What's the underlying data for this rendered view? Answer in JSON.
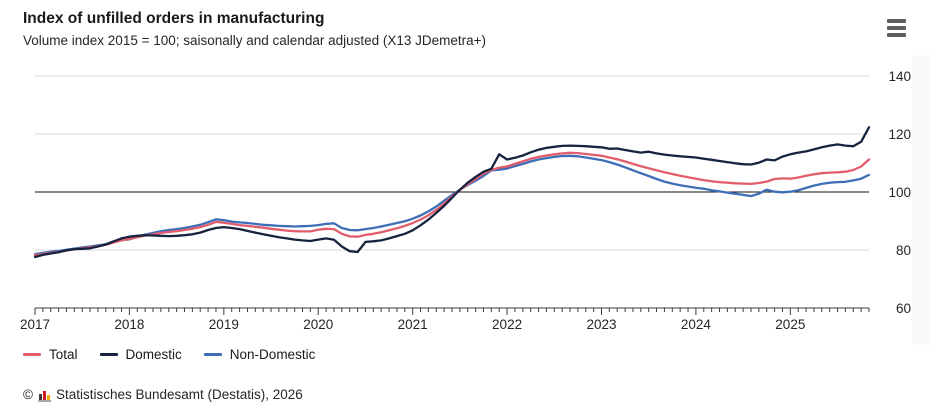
{
  "header": {
    "menu_tooltip": "Chart menu"
  },
  "chart_data": {
    "type": "line",
    "title": "Index of unfilled orders in manufacturing",
    "subtitle": "Volume index 2015 = 100; saisonally and calendar adjusted (X13 JDemetra+)",
    "x_start": "2017-01",
    "x_end": "2025-11",
    "x_frequency": "monthly",
    "x_year_labels": [
      "2017",
      "2018",
      "2019",
      "2020",
      "2021",
      "2022",
      "2023",
      "2024",
      "2025"
    ],
    "yticks": [
      140,
      120,
      100,
      80,
      60
    ],
    "ylim": [
      60,
      140
    ],
    "baseline_value": 100,
    "grid": "horizontal",
    "legend_position": "bottom-left",
    "draw_order": [
      2,
      0,
      1
    ],
    "series": [
      {
        "name": "Total",
        "color": "#e15d6c",
        "values": [
          78.2,
          78.6,
          79.0,
          79.3,
          79.8,
          80.2,
          80.6,
          80.9,
          81.3,
          81.8,
          82.6,
          83.3,
          83.8,
          84.4,
          85.0,
          85.4,
          85.9,
          86.2,
          86.5,
          86.9,
          87.3,
          87.9,
          88.7,
          89.7,
          89.4,
          89.0,
          88.6,
          88.3,
          88.0,
          87.7,
          87.3,
          87.0,
          86.7,
          86.5,
          86.4,
          86.4,
          87.0,
          87.3,
          87.2,
          85.6,
          84.7,
          84.6,
          85.2,
          85.6,
          86.1,
          86.8,
          87.5,
          88.3,
          89.3,
          90.5,
          92.0,
          93.8,
          96.0,
          98.4,
          100.7,
          102.7,
          104.5,
          106.4,
          107.6,
          108.4,
          108.8,
          109.7,
          110.6,
          111.4,
          112.1,
          112.6,
          113.0,
          113.3,
          113.5,
          113.4,
          113.1,
          112.8,
          112.5,
          111.9,
          111.3,
          110.5,
          109.7,
          108.9,
          108.2,
          107.5,
          106.8,
          106.2,
          105.6,
          105.1,
          104.6,
          104.1,
          103.7,
          103.4,
          103.2,
          103.0,
          102.9,
          102.8,
          103.1,
          103.6,
          104.5,
          104.7,
          104.6,
          105.0,
          105.6,
          106.1,
          106.5,
          106.7,
          106.8,
          107.0,
          107.6,
          108.8,
          111.2
        ]
      },
      {
        "name": "Domestic",
        "color": "#16233f",
        "values": [
          77.6,
          78.3,
          78.8,
          79.2,
          79.9,
          80.3,
          80.4,
          80.6,
          81.2,
          81.9,
          83.0,
          84.0,
          84.6,
          84.9,
          85.1,
          85.0,
          84.9,
          84.8,
          84.9,
          85.1,
          85.4,
          86.0,
          86.9,
          87.6,
          87.9,
          87.6,
          87.2,
          86.6,
          86.0,
          85.4,
          84.9,
          84.4,
          84.0,
          83.6,
          83.3,
          83.1,
          83.6,
          84.0,
          83.5,
          81.2,
          79.6,
          79.3,
          82.8,
          83.0,
          83.3,
          84.0,
          84.8,
          85.6,
          86.8,
          88.5,
          90.5,
          92.8,
          95.2,
          98.0,
          100.8,
          103.2,
          105.2,
          107.0,
          108.0,
          113.0,
          111.2,
          111.8,
          112.6,
          113.7,
          114.6,
          115.2,
          115.6,
          115.9,
          116.0,
          115.9,
          115.8,
          115.6,
          115.4,
          114.9,
          115.0,
          114.5,
          114.0,
          113.6,
          113.9,
          113.3,
          112.9,
          112.6,
          112.3,
          112.1,
          111.9,
          111.5,
          111.1,
          110.7,
          110.3,
          109.9,
          109.6,
          109.5,
          110.1,
          111.2,
          110.9,
          112.2,
          113.0,
          113.6,
          114.0,
          114.7,
          115.4,
          116.0,
          116.4,
          116.0,
          115.8,
          117.3,
          122.3
        ]
      },
      {
        "name": "Non-Domestic",
        "color": "#3e6eb8",
        "values": [
          78.6,
          79.0,
          79.4,
          79.7,
          80.1,
          80.5,
          80.9,
          81.2,
          81.6,
          82.0,
          82.8,
          83.4,
          83.7,
          84.4,
          85.3,
          85.9,
          86.5,
          86.9,
          87.2,
          87.6,
          88.1,
          88.7,
          89.6,
          90.6,
          90.3,
          89.8,
          89.5,
          89.3,
          89.0,
          88.7,
          88.5,
          88.3,
          88.2,
          88.1,
          88.2,
          88.3,
          88.6,
          89.0,
          89.2,
          87.6,
          86.9,
          86.8,
          87.2,
          87.6,
          88.1,
          88.7,
          89.3,
          89.9,
          90.8,
          91.9,
          93.3,
          95.0,
          97.0,
          99.0,
          100.8,
          102.4,
          103.9,
          105.5,
          107.5,
          107.7,
          108.1,
          108.9,
          109.7,
          110.5,
          111.2,
          111.7,
          112.1,
          112.4,
          112.5,
          112.3,
          111.9,
          111.5,
          111.0,
          110.3,
          109.5,
          108.5,
          107.5,
          106.5,
          105.5,
          104.5,
          103.6,
          102.9,
          102.3,
          101.9,
          101.5,
          101.1,
          100.6,
          100.2,
          99.8,
          99.4,
          99.0,
          98.6,
          99.4,
          100.8,
          100.1,
          99.9,
          100.1,
          100.6,
          101.4,
          102.2,
          102.8,
          103.2,
          103.4,
          103.5,
          104.0,
          104.6,
          105.9
        ]
      }
    ],
    "colors": {
      "grid": "#d9d9d9",
      "baseline": "#111111",
      "axis": "#3c3c3c",
      "tick_text": "#262626"
    }
  },
  "footer": {
    "copyright": "©",
    "source": "Statistisches Bundesamt (Destatis), 2026"
  }
}
